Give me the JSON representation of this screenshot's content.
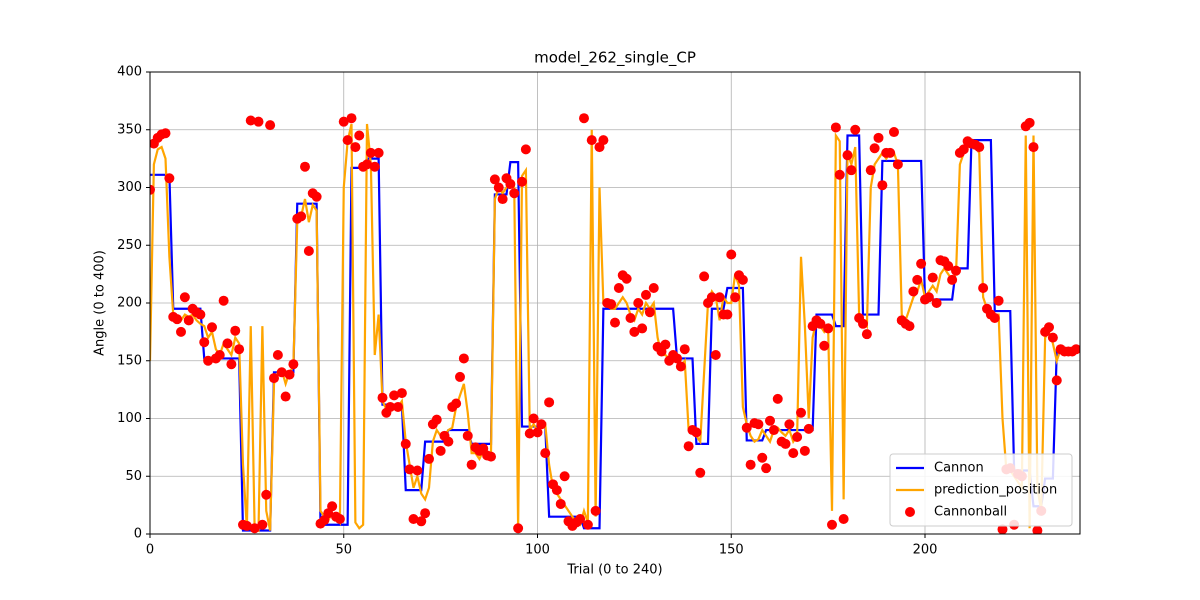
{
  "chart_data": {
    "type": "line",
    "title": "model_262_single_CP",
    "x_label": "Trial (0 to 240)",
    "y_label": "Angle (0 to 400)",
    "xlim": [
      0,
      240
    ],
    "ylim": [
      0,
      400
    ],
    "xticks": [
      0,
      50,
      100,
      150,
      200
    ],
    "yticks": [
      0,
      50,
      100,
      150,
      200,
      250,
      300,
      350,
      400
    ],
    "grid": true,
    "legend": "lower right",
    "x": [
      0,
      1,
      2,
      3,
      4,
      5,
      6,
      7,
      8,
      9,
      10,
      11,
      12,
      13,
      14,
      15,
      16,
      17,
      18,
      19,
      20,
      21,
      22,
      23,
      24,
      25,
      26,
      27,
      28,
      29,
      30,
      31,
      32,
      33,
      34,
      35,
      36,
      37,
      38,
      39,
      40,
      41,
      42,
      43,
      44,
      45,
      46,
      47,
      48,
      49,
      50,
      51,
      52,
      53,
      54,
      55,
      56,
      57,
      58,
      59,
      60,
      61,
      62,
      63,
      64,
      65,
      66,
      67,
      68,
      69,
      70,
      71,
      72,
      73,
      74,
      75,
      76,
      77,
      78,
      79,
      80,
      81,
      82,
      83,
      84,
      85,
      86,
      87,
      88,
      89,
      90,
      91,
      92,
      93,
      94,
      95,
      96,
      97,
      98,
      99,
      100,
      101,
      102,
      103,
      104,
      105,
      106,
      107,
      108,
      109,
      110,
      111,
      112,
      113,
      114,
      115,
      116,
      117,
      118,
      119,
      120,
      121,
      122,
      123,
      124,
      125,
      126,
      127,
      128,
      129,
      130,
      131,
      132,
      133,
      134,
      135,
      136,
      137,
      138,
      139,
      140,
      141,
      142,
      143,
      144,
      145,
      146,
      147,
      148,
      149,
      150,
      151,
      152,
      153,
      154,
      155,
      156,
      157,
      158,
      159,
      160,
      161,
      162,
      163,
      164,
      165,
      166,
      167,
      168,
      169,
      170,
      171,
      172,
      173,
      174,
      175,
      176,
      177,
      178,
      179,
      180,
      181,
      182,
      183,
      184,
      185,
      186,
      187,
      188,
      189,
      190,
      191,
      192,
      193,
      194,
      195,
      196,
      197,
      198,
      199,
      200,
      201,
      202,
      203,
      204,
      205,
      206,
      207,
      208,
      209,
      210,
      211,
      212,
      213,
      214,
      215,
      216,
      217,
      218,
      219,
      220,
      221,
      222,
      223,
      224,
      225,
      226,
      227,
      228,
      229,
      230,
      231,
      232,
      233,
      234,
      235,
      236,
      237,
      238,
      239
    ],
    "series": [
      {
        "name": "Cannon",
        "kind": "line",
        "color": "#0000ff",
        "values": [
          311,
          311,
          311,
          311,
          311,
          311,
          195,
          195,
          195,
          195,
          195,
          195,
          195,
          195,
          152,
          152,
          152,
          152,
          152,
          152,
          152,
          152,
          152,
          152,
          3,
          3,
          3,
          3,
          3,
          3,
          3,
          3,
          140,
          140,
          140,
          140,
          140,
          140,
          286,
          286,
          286,
          286,
          286,
          286,
          8,
          8,
          8,
          8,
          8,
          8,
          8,
          8,
          317,
          317,
          317,
          317,
          325,
          325,
          325,
          325,
          112,
          112,
          112,
          112,
          112,
          112,
          38,
          38,
          38,
          38,
          38,
          80,
          80,
          80,
          80,
          80,
          80,
          90,
          90,
          90,
          90,
          90,
          90,
          78,
          78,
          78,
          78,
          78,
          78,
          294,
          294,
          294,
          294,
          322,
          322,
          322,
          93,
          93,
          93,
          93,
          93,
          93,
          93,
          15,
          15,
          15,
          15,
          15,
          15,
          15,
          15,
          15,
          5,
          5,
          5,
          5,
          5,
          195,
          195,
          195,
          195,
          195,
          195,
          195,
          195,
          195,
          195,
          195,
          195,
          195,
          195,
          195,
          195,
          195,
          195,
          195,
          152,
          152,
          152,
          152,
          152,
          78,
          78,
          78,
          78,
          195,
          195,
          195,
          195,
          213,
          213,
          213,
          213,
          213,
          81,
          81,
          81,
          81,
          81,
          90,
          90,
          90,
          90,
          90,
          90,
          90,
          90,
          90,
          90,
          90,
          90,
          90,
          190,
          190,
          190,
          190,
          190,
          180,
          180,
          180,
          345,
          345,
          345,
          345,
          190,
          190,
          190,
          190,
          190,
          323,
          323,
          323,
          323,
          323,
          323,
          323,
          323,
          323,
          323,
          323,
          203,
          203,
          203,
          203,
          203,
          203,
          203,
          203,
          230,
          230,
          230,
          230,
          341,
          341,
          341,
          341,
          341,
          341,
          193,
          193,
          193,
          193,
          193,
          55,
          55,
          55,
          55,
          55,
          24,
          24,
          24,
          48,
          48,
          48,
          158,
          158,
          158,
          158,
          158,
          158
        ]
      },
      {
        "name": "prediction_position",
        "kind": "line",
        "color": "#ffa500",
        "values": [
          150,
          320,
          333,
          335,
          325,
          240,
          190,
          188,
          185,
          190,
          188,
          190,
          185,
          182,
          180,
          170,
          175,
          160,
          155,
          165,
          160,
          155,
          170,
          165,
          60,
          5,
          180,
          5,
          3,
          180,
          20,
          3,
          130,
          140,
          142,
          130,
          140,
          145,
          270,
          275,
          290,
          270,
          285,
          280,
          20,
          15,
          12,
          18,
          15,
          10,
          300,
          340,
          355,
          10,
          5,
          8,
          355,
          320,
          155,
          190,
          115,
          108,
          110,
          112,
          110,
          115,
          80,
          60,
          40,
          50,
          35,
          30,
          40,
          80,
          90,
          85,
          85,
          90,
          92,
          110,
          120,
          130,
          105,
          70,
          70,
          65,
          72,
          68,
          70,
          290,
          300,
          295,
          300,
          305,
          300,
          5,
          310,
          315,
          90,
          95,
          90,
          92,
          95,
          60,
          40,
          35,
          30,
          25,
          20,
          15,
          10,
          8,
          20,
          10,
          350,
          15,
          300,
          200,
          200,
          195,
          195,
          200,
          205,
          200,
          190,
          185,
          195,
          190,
          200,
          195,
          200,
          170,
          155,
          155,
          152,
          150,
          155,
          145,
          150,
          90,
          88,
          85,
          80,
          140,
          200,
          210,
          205,
          185,
          205,
          200,
          200,
          225,
          215,
          110,
          95,
          85,
          80,
          82,
          90,
          85,
          80,
          90,
          92,
          88,
          85,
          90,
          80,
          85,
          240,
          180,
          100,
          170,
          185,
          180,
          175,
          180,
          20,
          345,
          340,
          30,
          330,
          320,
          335,
          190,
          185,
          180,
          300,
          320,
          325,
          330,
          325,
          330,
          330,
          320,
          190,
          185,
          195,
          205,
          210,
          220,
          205,
          210,
          215,
          210,
          225,
          230,
          225,
          220,
          225,
          320,
          330,
          335,
          335,
          335,
          330,
          205,
          195,
          192,
          190,
          190,
          100,
          55,
          55,
          50,
          45,
          40,
          345,
          5,
          345,
          40,
          20,
          170,
          175,
          165,
          150,
          160,
          158,
          158,
          158,
          160
        ]
      },
      {
        "name": "Cannonball",
        "kind": "scatter",
        "color": "#ff0000",
        "values": [
          298,
          338,
          343,
          346,
          347,
          308,
          188,
          186,
          175,
          205,
          185,
          195,
          192,
          190,
          166,
          150,
          179,
          152,
          155,
          202,
          165,
          147,
          176,
          160,
          8,
          7,
          358,
          5,
          357,
          8,
          34,
          354,
          135,
          155,
          140,
          119,
          138,
          147,
          273,
          275,
          318,
          245,
          295,
          292,
          9,
          12,
          18,
          24,
          15,
          13,
          357,
          341,
          360,
          335,
          345,
          318,
          320,
          330,
          318,
          330,
          118,
          105,
          110,
          120,
          110,
          122,
          78,
          56,
          13,
          55,
          11,
          18,
          65,
          95,
          99,
          72,
          85,
          80,
          110,
          113,
          136,
          152,
          85,
          60,
          75,
          72,
          74,
          68,
          67,
          307,
          300,
          290,
          308,
          303,
          295,
          5,
          305,
          333,
          87,
          100,
          88,
          95,
          70,
          114,
          43,
          38,
          26,
          50,
          11,
          7,
          10,
          13,
          360,
          8,
          341,
          20,
          335,
          341,
          200,
          199,
          183,
          213,
          224,
          221,
          187,
          175,
          200,
          178,
          207,
          192,
          213,
          162,
          158,
          164,
          150,
          155,
          152,
          145,
          160,
          76,
          90,
          88,
          53,
          223,
          200,
          205,
          155,
          205,
          190,
          190,
          242,
          205,
          224,
          220,
          92,
          60,
          96,
          95,
          66,
          57,
          98,
          90,
          117,
          80,
          78,
          95,
          70,
          84,
          105,
          72,
          91,
          180,
          185,
          182,
          163,
          178,
          8,
          352,
          311,
          13,
          328,
          315,
          350,
          187,
          182,
          173,
          315,
          334,
          343,
          302,
          330,
          330,
          348,
          320,
          185,
          182,
          180,
          210,
          220,
          234,
          203,
          205,
          222,
          200,
          237,
          236,
          232,
          220,
          228,
          330,
          333,
          340,
          338,
          337,
          335,
          213,
          195,
          190,
          187,
          202,
          4,
          56,
          57,
          8,
          52,
          50,
          353,
          356,
          335,
          3,
          20,
          175,
          179,
          170,
          133,
          160,
          158,
          158,
          158,
          160
        ]
      }
    ]
  }
}
